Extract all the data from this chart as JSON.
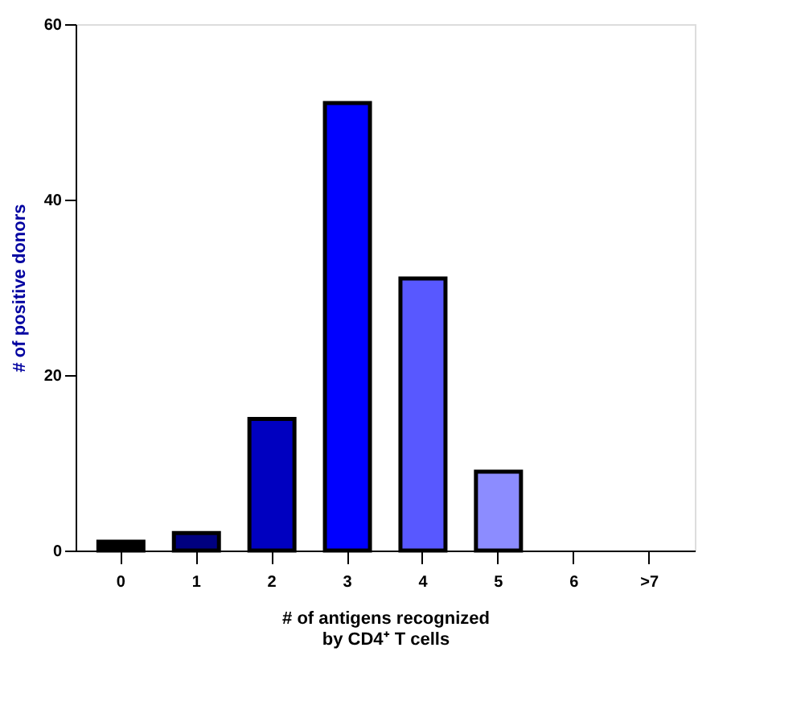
{
  "chart_data": {
    "type": "bar",
    "xlabel": "# of antigens recognized\nby CD4⁺ T cells",
    "ylabel": "# of positive donors",
    "categories": [
      "0",
      "1",
      "2",
      "3",
      "4",
      "5",
      "6",
      ">7"
    ],
    "values": [
      1,
      2,
      15,
      51,
      31,
      9,
      0,
      0
    ],
    "colors": [
      "#000000",
      "#000080",
      "#0000c0",
      "#0000ff",
      "#5858ff",
      "#8c8cff",
      null,
      null
    ],
    "ylim": [
      0,
      60
    ],
    "yticks": [
      0,
      20,
      40,
      60
    ],
    "grid": false
  }
}
